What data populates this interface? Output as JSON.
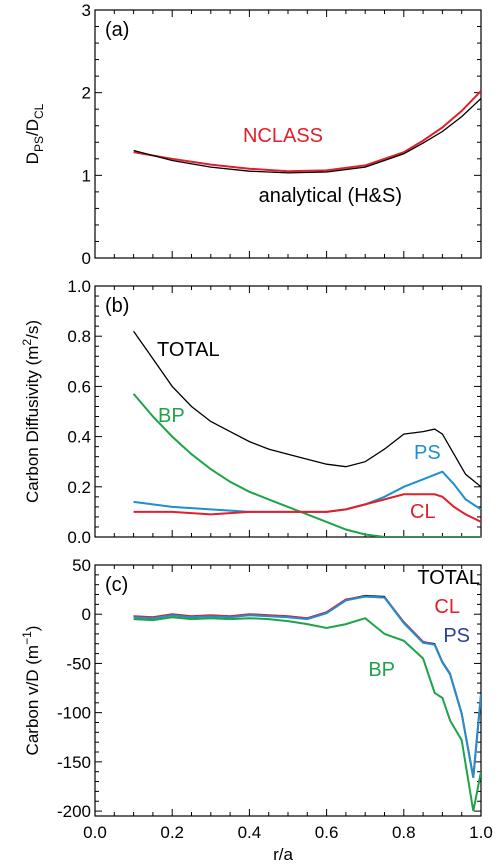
{
  "chart_data": [
    {
      "type": "line",
      "panel": "(a)",
      "ylabel_main": "D",
      "ylabel_sub1": "PS",
      "ylabel_mid": "/D",
      "ylabel_sub2": "CL",
      "xlim": [
        0.0,
        1.0
      ],
      "ylim": [
        0,
        3
      ],
      "yticks": [
        "0",
        "1",
        "2",
        "3"
      ],
      "annotations": [
        {
          "text": "NCLASS",
          "color": "#e0202a"
        },
        {
          "text": "analytical (H&S)",
          "color": "#000000"
        }
      ],
      "series": [
        {
          "name": "NCLASS",
          "color": "#e0202a",
          "x": [
            0.1,
            0.2,
            0.3,
            0.4,
            0.5,
            0.6,
            0.7,
            0.8,
            0.85,
            0.9,
            0.95,
            1.0
          ],
          "y": [
            1.28,
            1.2,
            1.13,
            1.08,
            1.05,
            1.06,
            1.12,
            1.28,
            1.42,
            1.58,
            1.78,
            2.02
          ]
        },
        {
          "name": "analytical (H&S)",
          "color": "#000000",
          "x": [
            0.1,
            0.2,
            0.3,
            0.4,
            0.5,
            0.6,
            0.7,
            0.8,
            0.85,
            0.9,
            0.95,
            1.0
          ],
          "y": [
            1.3,
            1.18,
            1.1,
            1.05,
            1.03,
            1.04,
            1.1,
            1.26,
            1.39,
            1.53,
            1.71,
            1.93
          ]
        }
      ]
    },
    {
      "type": "line",
      "panel": "(b)",
      "ylabel_main": "Carbon Diffusivity (m",
      "ylabel_sup": "2",
      "ylabel_end": "/s)",
      "xlim": [
        0.0,
        1.0
      ],
      "ylim": [
        0,
        1.0
      ],
      "yticks": [
        "0.0",
        "0.2",
        "0.4",
        "0.6",
        "0.8",
        "1.0"
      ],
      "annotations": [
        {
          "text": "TOTAL",
          "color": "#000000"
        },
        {
          "text": "BP",
          "color": "#1fa34a"
        },
        {
          "text": "PS",
          "color": "#1e8fd0"
        },
        {
          "text": "CL",
          "color": "#e0202a"
        }
      ],
      "series": [
        {
          "name": "TOTAL",
          "color": "#000000",
          "x": [
            0.1,
            0.15,
            0.2,
            0.25,
            0.3,
            0.35,
            0.4,
            0.45,
            0.5,
            0.55,
            0.6,
            0.65,
            0.7,
            0.75,
            0.8,
            0.85,
            0.88,
            0.9,
            0.93,
            0.96,
            1.0
          ],
          "y": [
            0.82,
            0.71,
            0.6,
            0.52,
            0.46,
            0.42,
            0.38,
            0.35,
            0.33,
            0.31,
            0.29,
            0.28,
            0.3,
            0.35,
            0.41,
            0.42,
            0.43,
            0.41,
            0.33,
            0.25,
            0.2
          ]
        },
        {
          "name": "BP",
          "color": "#1fa34a",
          "x": [
            0.1,
            0.15,
            0.2,
            0.25,
            0.3,
            0.35,
            0.4,
            0.45,
            0.5,
            0.55,
            0.6,
            0.65,
            0.7,
            0.75,
            0.8,
            0.85,
            0.9,
            0.95,
            1.0
          ],
          "y": [
            0.57,
            0.48,
            0.4,
            0.33,
            0.27,
            0.22,
            0.18,
            0.15,
            0.12,
            0.09,
            0.06,
            0.03,
            0.01,
            0.0,
            0.0,
            0.0,
            0.0,
            0.0,
            0.0
          ]
        },
        {
          "name": "PS",
          "color": "#1e8fd0",
          "x": [
            0.1,
            0.2,
            0.3,
            0.4,
            0.5,
            0.55,
            0.6,
            0.65,
            0.7,
            0.75,
            0.8,
            0.85,
            0.9,
            0.93,
            0.96,
            1.0
          ],
          "y": [
            0.14,
            0.12,
            0.11,
            0.1,
            0.1,
            0.1,
            0.1,
            0.11,
            0.13,
            0.16,
            0.2,
            0.23,
            0.26,
            0.21,
            0.15,
            0.11
          ]
        },
        {
          "name": "CL",
          "color": "#e0202a",
          "x": [
            0.1,
            0.2,
            0.3,
            0.4,
            0.5,
            0.55,
            0.6,
            0.65,
            0.7,
            0.75,
            0.8,
            0.85,
            0.88,
            0.9,
            0.93,
            0.96,
            1.0
          ],
          "y": [
            0.1,
            0.1,
            0.09,
            0.1,
            0.1,
            0.1,
            0.1,
            0.11,
            0.13,
            0.15,
            0.17,
            0.17,
            0.17,
            0.16,
            0.12,
            0.09,
            0.06
          ]
        }
      ]
    },
    {
      "type": "line",
      "panel": "(c)",
      "xlabel": "r/a",
      "ylabel_main": "Carbon v/D (m",
      "ylabel_sup": "−1",
      "ylabel_end": ")",
      "xlim": [
        0.0,
        1.0
      ],
      "ylim": [
        -205,
        50
      ],
      "xticks": [
        "0.0",
        "0.2",
        "0.4",
        "0.6",
        "0.8",
        "1.0"
      ],
      "yticks": [
        "-200",
        "-150",
        "-100",
        "-50",
        "0",
        "50"
      ],
      "annotations": [
        {
          "text": "TOTAL",
          "color": "#000000"
        },
        {
          "text": "CL",
          "color": "#e0202a"
        },
        {
          "text": "PS",
          "color": "#2b3f9a"
        },
        {
          "text": "BP",
          "color": "#1fa34a"
        }
      ],
      "series": [
        {
          "name": "TOTAL",
          "color": "#000000",
          "x": [
            0.1,
            0.15,
            0.2,
            0.25,
            0.3,
            0.35,
            0.4,
            0.45,
            0.5,
            0.55,
            0.6,
            0.65,
            0.7,
            0.75,
            0.8,
            0.85,
            0.88,
            0.9,
            0.92,
            0.95,
            0.98,
            1.0
          ],
          "y": [
            -2,
            -3,
            0,
            -2,
            -1,
            -2,
            0,
            -1,
            -2,
            -4,
            2,
            15,
            19,
            18,
            -8,
            -28,
            -30,
            -48,
            -60,
            -100,
            -165,
            -80
          ]
        },
        {
          "name": "CL",
          "color": "#e0202a",
          "x": [
            0.1,
            0.15,
            0.2,
            0.25,
            0.3,
            0.35,
            0.4,
            0.45,
            0.5,
            0.55,
            0.6,
            0.65,
            0.7,
            0.75,
            0.8,
            0.85,
            0.88,
            0.9,
            0.92,
            0.95,
            0.98,
            1.0
          ],
          "y": [
            -2,
            -3,
            0,
            -2,
            -1,
            -2,
            0,
            -1,
            -2,
            -4,
            2,
            15,
            18,
            17,
            -8,
            -28,
            -31,
            -49,
            -61,
            -101,
            -166,
            -82
          ]
        },
        {
          "name": "PS",
          "color": "#1e8fd0",
          "x": [
            0.1,
            0.15,
            0.2,
            0.25,
            0.3,
            0.35,
            0.4,
            0.45,
            0.5,
            0.55,
            0.6,
            0.65,
            0.7,
            0.75,
            0.8,
            0.85,
            0.88,
            0.9,
            0.92,
            0.95,
            0.98,
            1.0
          ],
          "y": [
            -3,
            -4,
            -1,
            -3,
            -2,
            -3,
            -1,
            -2,
            -3,
            -5,
            1,
            14,
            18,
            17,
            -9,
            -29,
            -31,
            -49,
            -61,
            -101,
            -166,
            -81
          ]
        },
        {
          "name": "BP",
          "color": "#1fa34a",
          "x": [
            0.1,
            0.15,
            0.2,
            0.25,
            0.3,
            0.35,
            0.4,
            0.45,
            0.5,
            0.55,
            0.6,
            0.65,
            0.7,
            0.75,
            0.8,
            0.85,
            0.88,
            0.9,
            0.92,
            0.95,
            0.98,
            1.0
          ],
          "y": [
            -5,
            -6,
            -3,
            -5,
            -4,
            -5,
            -4,
            -5,
            -7,
            -10,
            -14,
            -10,
            -4,
            -20,
            -27,
            -45,
            -80,
            -85,
            -108,
            -128,
            -200,
            -160
          ]
        }
      ]
    }
  ]
}
